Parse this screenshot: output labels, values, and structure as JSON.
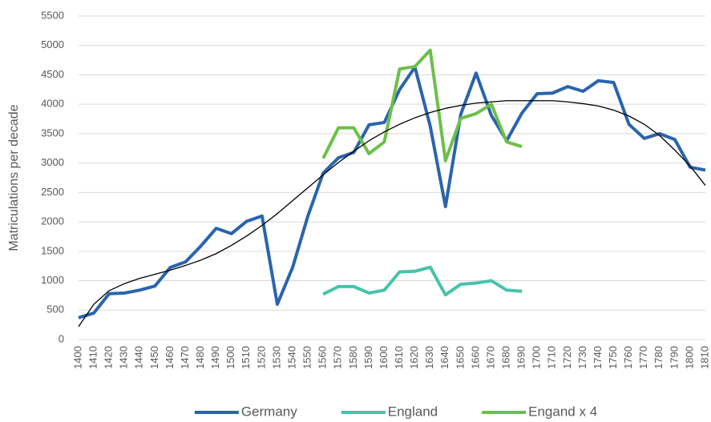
{
  "chart_data": {
    "type": "line",
    "y_label": "Matriculations per decade",
    "categories": [
      "1400",
      "1410",
      "1420",
      "1430",
      "1440",
      "1450",
      "1460",
      "1470",
      "1480",
      "1490",
      "1500",
      "1510",
      "1520",
      "1530",
      "1540",
      "1550",
      "1560",
      "1570",
      "1580",
      "1590",
      "1600",
      "1610",
      "1620",
      "1630",
      "1640",
      "1650",
      "1660",
      "1670",
      "1680",
      "1690",
      "1700",
      "1710",
      "1720",
      "1730",
      "1740",
      "1750",
      "1760",
      "1770",
      "1780",
      "1790",
      "1800",
      "1810"
    ],
    "series": [
      {
        "name": "Germany",
        "color": "#2a64ad",
        "values": [
          370,
          450,
          780,
          790,
          840,
          910,
          1225,
          1320,
          1590,
          1890,
          1800,
          2010,
          2100,
          600,
          1225,
          2100,
          2830,
          3090,
          3180,
          3650,
          3690,
          4250,
          4630,
          3630,
          2260,
          3830,
          4530,
          3810,
          3380,
          3850,
          4180,
          4190,
          4300,
          4220,
          4400,
          4370,
          3660,
          3420,
          3500,
          3400,
          2930,
          2880
        ]
      },
      {
        "name": "England",
        "color": "#45c4a8",
        "values": [
          null,
          null,
          null,
          null,
          null,
          null,
          null,
          null,
          null,
          null,
          null,
          null,
          null,
          null,
          null,
          null,
          770,
          900,
          900,
          790,
          840,
          1150,
          1160,
          1230,
          760,
          940,
          960,
          1000,
          840,
          820,
          null,
          null,
          null,
          null,
          null,
          null,
          null,
          null,
          null,
          null,
          null,
          null
        ]
      },
      {
        "name": "Engand x 4",
        "color": "#6cc04a",
        "values": [
          null,
          null,
          null,
          null,
          null,
          null,
          null,
          null,
          null,
          null,
          null,
          null,
          null,
          null,
          null,
          null,
          3080,
          3600,
          3600,
          3160,
          3360,
          4600,
          4640,
          4920,
          3040,
          3760,
          3840,
          4000,
          3360,
          3280,
          null,
          null,
          null,
          null,
          null,
          null,
          null,
          null,
          null,
          null,
          null,
          null
        ]
      },
      {
        "color": "#000000",
        "values": [
          220,
          600,
          830,
          950,
          1040,
          1110,
          1180,
          1260,
          1350,
          1460,
          1600,
          1760,
          1940,
          2140,
          2360,
          2580,
          2800,
          3010,
          3200,
          3380,
          3530,
          3660,
          3770,
          3860,
          3930,
          3980,
          4020,
          4040,
          4060,
          4060,
          4060,
          4060,
          4040,
          4010,
          3970,
          3900,
          3800,
          3660,
          3470,
          3220,
          2950,
          2620
        ]
      }
    ],
    "ylim": [
      0,
      5500
    ],
    "yticks": [
      0,
      500,
      1000,
      1500,
      2000,
      2500,
      3000,
      3500,
      4000,
      4500,
      5000,
      5500
    ],
    "grid": true,
    "legend": "bottom"
  }
}
